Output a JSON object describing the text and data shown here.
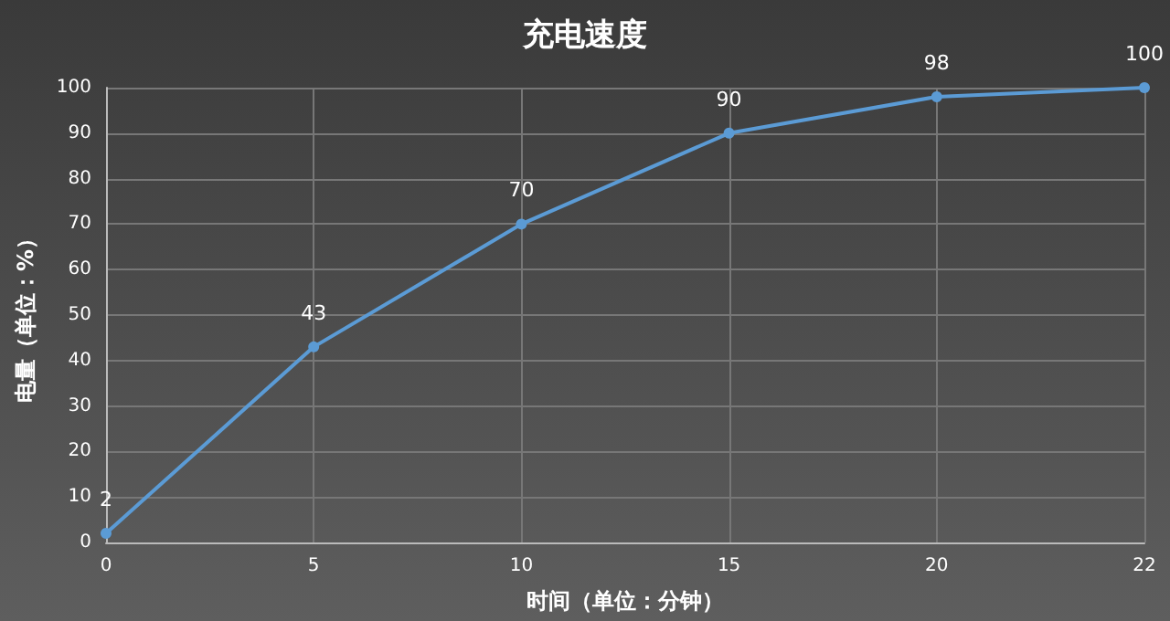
{
  "chart_data": {
    "type": "line",
    "title": "充电速度",
    "xlabel": "时间（单位：分钟）",
    "ylabel": "电量（单位：%）",
    "categories": [
      "0",
      "5",
      "10",
      "15",
      "20",
      "22"
    ],
    "series": [
      {
        "color": "#5b9bd5",
        "values": [
          2,
          43,
          70,
          90,
          98,
          100
        ]
      }
    ],
    "ylim": [
      0,
      100
    ],
    "yticks": [
      0,
      10,
      20,
      30,
      40,
      50,
      60,
      70,
      80,
      90,
      100
    ],
    "grid": true,
    "marker": "circle",
    "line_style": "solid",
    "data_labels": true
  }
}
